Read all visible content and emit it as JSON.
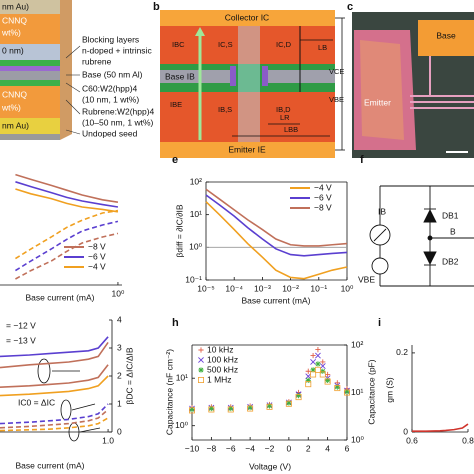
{
  "panels": {
    "a": {
      "left": [
        "nm Au)",
        "CNNQ",
        "wt%)",
        "0 nm)",
        "CNNQ",
        "wt%)",
        "nm Au)"
      ],
      "right": [
        "Blocking layers",
        "n-doped + intrinsic",
        "rubrene",
        "Base (50 nm Al)",
        "C60:W2(hpp)4",
        "(10 nm, 1 wt%)",
        "Rubrene:W2(hpp)4",
        "(10–50 nm, 1 wt%)",
        "Undoped seed"
      ]
    },
    "b": {
      "label": "b",
      "collector": "Collector IC",
      "base": "Base IB",
      "emitter": "Emitter IE",
      "i_bc": "IBC",
      "i_cs": "IC,S",
      "i_cd": "IC,D",
      "l_b": "LB",
      "v_ce": "VCE",
      "v_be": "VBE",
      "i_be": "IBE",
      "i_bs": "IB,S",
      "i_bd": "IB,D",
      "l_r": "LR",
      "l_bb": "LBB"
    },
    "c": {
      "label": "c",
      "emitter": "Emitter",
      "base": "Base"
    },
    "f": {
      "label": "f",
      "i_b": "IB",
      "v_be": "VBE",
      "d_b1": "DB1",
      "d_b2": "DB2",
      "b": "B"
    }
  },
  "chart_data": [
    {
      "type": "line",
      "xscale": "log",
      "xlim": [
        0.005,
        1.2
      ],
      "xticks": [
        {
          "value": 1,
          "label": "10⁰"
        }
      ],
      "ylim": [
        0,
        1
      ],
      "xlabel": "Base current (mA)",
      "legend": "lower right",
      "x": [
        0.01,
        0.02,
        0.05,
        0.1,
        0.2,
        0.5,
        1
      ],
      "series": [
        {
          "name": "−8 V",
          "color": "#c0705a",
          "values": [
            0.92,
            0.88,
            0.83,
            0.79,
            0.75,
            0.71,
            0.69
          ]
        },
        {
          "name": "−6 V",
          "color": "#5a3fd0",
          "values": [
            0.86,
            0.82,
            0.77,
            0.73,
            0.7,
            0.67,
            0.65
          ]
        },
        {
          "name": "−4 V",
          "color": "#f0a020",
          "values": [
            0.8,
            0.76,
            0.72,
            0.68,
            0.65,
            0.63,
            0.61
          ]
        },
        {
          "color": "#f0a020",
          "dashed": true,
          "values": [
            0.22,
            0.3,
            0.4,
            0.48,
            0.54,
            0.6,
            0.62
          ]
        },
        {
          "color": "#5a3fd0",
          "dashed": true,
          "values": [
            0.12,
            0.2,
            0.3,
            0.38,
            0.45,
            0.5,
            0.53
          ]
        },
        {
          "color": "#c0705a",
          "dashed": true,
          "values": [
            0.05,
            0.12,
            0.2,
            0.28,
            0.35,
            0.4,
            0.43
          ]
        }
      ]
    },
    {
      "type": "line",
      "panel_label": "e",
      "xscale": "log",
      "yscale": "log",
      "xlim": [
        1e-05,
        1
      ],
      "ylim": [
        0.1,
        100
      ],
      "xticks": [
        {
          "value": 1e-05,
          "label": "10⁻⁵"
        },
        {
          "value": 0.0001,
          "label": "10⁻⁴"
        },
        {
          "value": 0.001,
          "label": "10⁻³"
        },
        {
          "value": 0.01,
          "label": "10⁻²"
        },
        {
          "value": 0.1,
          "label": "10⁻¹"
        },
        {
          "value": 1,
          "label": "10⁰"
        }
      ],
      "yticks": [
        {
          "value": 0.1,
          "label": "10⁻¹"
        },
        {
          "value": 1,
          "label": "10⁰"
        },
        {
          "value": 10,
          "label": "10¹"
        },
        {
          "value": 100,
          "label": "10²"
        }
      ],
      "xlabel": "Base current (mA)",
      "ylabel": "βdiff = ∂IC/∂IB",
      "hline": 1,
      "legend": "upper right",
      "x": [
        1e-05,
        3e-05,
        0.0001,
        0.0003,
        0.001,
        0.003,
        0.01,
        0.03,
        0.1,
        0.3,
        1
      ],
      "series": [
        {
          "name": "−4 V",
          "color": "#f0a020",
          "values": [
            25,
            10,
            3.5,
            1.3,
            0.5,
            0.2,
            0.12,
            0.11,
            0.15,
            0.2,
            0.25
          ]
        },
        {
          "name": "−6 V",
          "color": "#5a3fd0",
          "values": [
            40,
            20,
            9,
            4,
            1.8,
            0.9,
            0.6,
            0.55,
            0.6,
            0.65,
            0.7
          ]
        },
        {
          "name": "−8 V",
          "color": "#c0705a",
          "values": [
            60,
            30,
            14,
            7,
            3.5,
            1.8,
            1.2,
            1.1,
            1.1,
            1.2,
            1.3
          ]
        }
      ]
    },
    {
      "type": "line",
      "xlim": [
        0.45,
        1.02
      ],
      "xticks": [
        {
          "value": 1,
          "label": "1.0"
        }
      ],
      "ylim": [
        0,
        4
      ],
      "yticks": [
        0,
        1,
        2,
        3,
        4
      ],
      "y_axis_side": "right",
      "xlabel": "Base current (mA)",
      "ylabel": "βDC = ΔIC/ΔIB",
      "annotations": [
        "= −12 V",
        "= −13 V",
        "IC0 = ΔIC"
      ],
      "x": [
        0.45,
        0.6,
        0.7,
        0.8,
        0.9,
        0.95,
        1.0
      ],
      "series": [
        {
          "color": "#5a3fd0",
          "values": [
            2.7,
            2.75,
            2.8,
            2.85,
            2.9,
            3.0,
            3.4
          ]
        },
        {
          "color": "#c0705a",
          "values": [
            2.3,
            2.4,
            2.45,
            2.5,
            2.6,
            2.7,
            3.2
          ]
        },
        {
          "color": "#c0705a",
          "values": [
            1.6,
            1.65,
            1.7,
            1.75,
            1.85,
            1.95,
            2.4
          ]
        },
        {
          "color": "#f0a020",
          "values": [
            1.3,
            1.35,
            1.4,
            1.45,
            1.55,
            1.65,
            2.0
          ]
        },
        {
          "color": "#5a3fd0",
          "dashed": true,
          "values": [
            0.3,
            0.35,
            0.4,
            0.45,
            0.55,
            0.65,
            1.0
          ]
        },
        {
          "color": "#c0705a",
          "dashed": true,
          "values": [
            0.15,
            0.2,
            0.25,
            0.3,
            0.4,
            0.5,
            0.8
          ]
        },
        {
          "color": "#f0a020",
          "dashed": true,
          "values": [
            0.05,
            0.08,
            0.1,
            0.15,
            0.22,
            0.3,
            0.5
          ]
        }
      ]
    },
    {
      "type": "scatter",
      "panel_label": "h",
      "xlim": [
        -10,
        6
      ],
      "yscale": "log",
      "ylim": [
        0.5,
        50
      ],
      "y2scale": "log",
      "y2lim": [
        1,
        100
      ],
      "xticks": [
        {
          "value": -10,
          "label": "−10"
        },
        {
          "value": -8,
          "label": "−8"
        },
        {
          "value": -6,
          "label": "−6"
        },
        {
          "value": -4,
          "label": "−4"
        },
        {
          "value": -2,
          "label": "−2"
        },
        0,
        2,
        4,
        6
      ],
      "yticks": [
        {
          "value": 1,
          "label": "10⁰"
        },
        {
          "value": 10,
          "label": "10¹"
        }
      ],
      "y2ticks": [
        {
          "value": 1,
          "label": "10⁰"
        },
        {
          "value": 10,
          "label": "10¹"
        },
        {
          "value": 100,
          "label": "10²"
        }
      ],
      "xlabel": "Voltage (V)",
      "ylabel": "Capacitance (nF cm⁻²)",
      "y2label": "Capacitance (pF)",
      "legend": "upper left",
      "x": [
        -10,
        -8,
        -6,
        -4,
        -2,
        0,
        1,
        2,
        2.5,
        3,
        3.5,
        4,
        5,
        6
      ],
      "series": [
        {
          "name": "10 kHz",
          "color": "#e0604a",
          "marker": "plus",
          "values": [
            2.4,
            2.5,
            2.5,
            2.6,
            2.8,
            3.2,
            5,
            14,
            30,
            40,
            22,
            12,
            8,
            6
          ]
        },
        {
          "name": "100 kHz",
          "color": "#6a40d8",
          "marker": "cross",
          "values": [
            2.3,
            2.4,
            2.4,
            2.5,
            2.7,
            3.1,
            4.6,
            11,
            22,
            30,
            18,
            10,
            7,
            5.5
          ]
        },
        {
          "name": "500 kHz",
          "color": "#40b040",
          "marker": "star",
          "values": [
            2.2,
            2.3,
            2.3,
            2.4,
            2.6,
            3,
            4.3,
            9,
            15,
            20,
            14,
            9,
            6.5,
            5.2
          ]
        },
        {
          "name": "1 MHz",
          "color": "#f0a030",
          "marker": "square",
          "values": [
            2.1,
            2.2,
            2.2,
            2.3,
            2.5,
            2.9,
            4,
            7.5,
            12,
            15,
            12,
            8.5,
            6.2,
            5
          ]
        }
      ]
    },
    {
      "type": "line",
      "panel_label": "i",
      "xlim": [
        0.6,
        0.8
      ],
      "xticks": [
        0.6,
        0.8
      ],
      "ylim": [
        0,
        0.22
      ],
      "yticks": [
        0,
        0.2
      ],
      "ylabel": "gm (S)",
      "x": [
        0.6,
        0.65,
        0.7,
        0.72,
        0.75,
        0.78,
        0.8
      ],
      "series": [
        {
          "color": "#d0342c",
          "values": [
            0.002,
            0.002,
            0.003,
            0.004,
            0.006,
            0.01,
            0.02
          ]
        }
      ]
    }
  ]
}
